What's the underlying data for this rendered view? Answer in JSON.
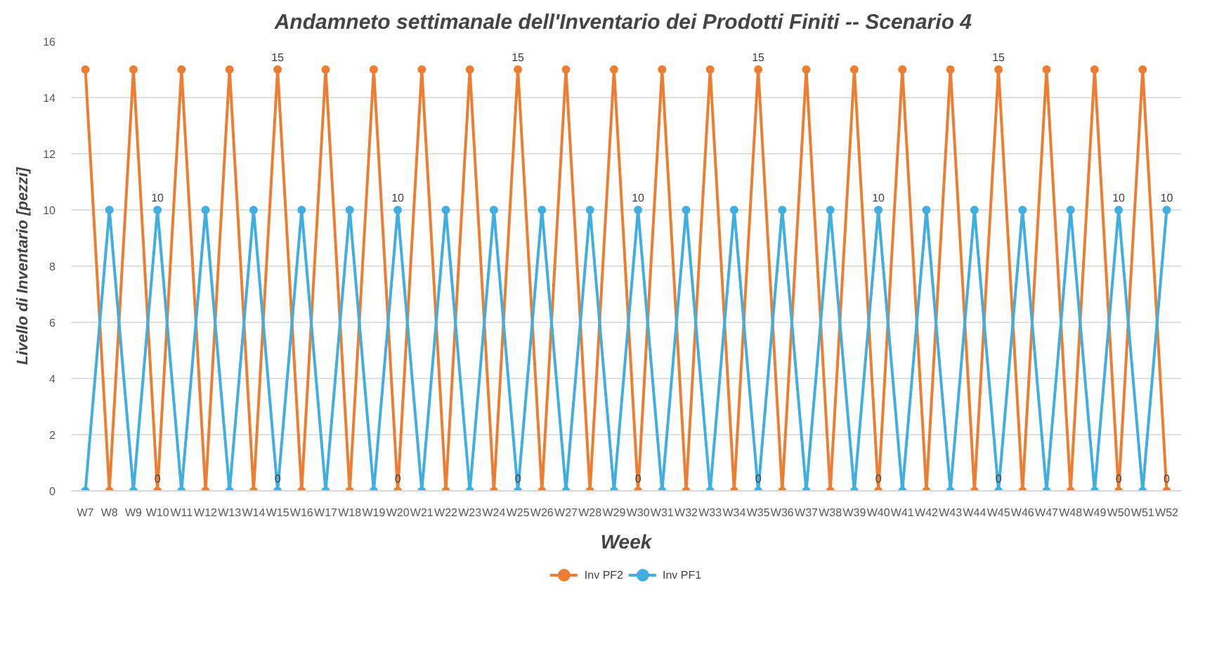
{
  "chart_data": {
    "type": "line",
    "title": "Andamneto settimanale dell'Inventario dei Prodotti Finiti -- Scenario  4",
    "xlabel": "Week",
    "ylabel": "Livello di Inventario [pezzi]",
    "categories": [
      "W7",
      "W8",
      "W9",
      "W10",
      "W11",
      "W12",
      "W13",
      "W14",
      "W15",
      "W16",
      "W17",
      "W18",
      "W19",
      "W20",
      "W21",
      "W22",
      "W23",
      "W24",
      "W25",
      "W26",
      "W27",
      "W28",
      "W29",
      "W30",
      "W31",
      "W32",
      "W33",
      "W34",
      "W35",
      "W36",
      "W37",
      "W38",
      "W39",
      "W40",
      "W41",
      "W42",
      "W43",
      "W44",
      "W45",
      "W46",
      "W47",
      "W48",
      "W49",
      "W50",
      "W51",
      "W52"
    ],
    "series": [
      {
        "name": "Inv PF2",
        "color": "#ed7d31",
        "values": [
          15,
          0,
          15,
          0,
          15,
          0,
          15,
          0,
          15,
          0,
          15,
          0,
          15,
          0,
          15,
          0,
          15,
          0,
          15,
          0,
          15,
          0,
          15,
          0,
          15,
          0,
          15,
          0,
          15,
          0,
          15,
          0,
          15,
          0,
          15,
          0,
          15,
          0,
          15,
          0,
          15,
          0,
          15,
          0,
          15,
          0
        ],
        "value_labels": [
          null,
          null,
          null,
          "0",
          null,
          null,
          null,
          null,
          "15",
          null,
          null,
          null,
          null,
          "0",
          null,
          null,
          null,
          null,
          "15",
          null,
          null,
          null,
          null,
          "0",
          null,
          null,
          null,
          null,
          "15",
          null,
          null,
          null,
          null,
          "0",
          null,
          null,
          null,
          null,
          "15",
          null,
          null,
          null,
          null,
          "0",
          null,
          "0"
        ]
      },
      {
        "name": "Inv PF1",
        "color": "#41aee0",
        "values": [
          0,
          10,
          0,
          10,
          0,
          10,
          0,
          10,
          0,
          10,
          0,
          10,
          0,
          10,
          0,
          10,
          0,
          10,
          0,
          10,
          0,
          10,
          0,
          10,
          0,
          10,
          0,
          10,
          0,
          10,
          0,
          10,
          0,
          10,
          0,
          10,
          0,
          10,
          0,
          10,
          0,
          10,
          0,
          10,
          0,
          10
        ],
        "value_labels": [
          null,
          null,
          null,
          "10",
          null,
          null,
          null,
          null,
          "0",
          null,
          null,
          null,
          null,
          "10",
          null,
          null,
          null,
          null,
          "0",
          null,
          null,
          null,
          null,
          "10",
          null,
          null,
          null,
          null,
          "0",
          null,
          null,
          null,
          null,
          "10",
          null,
          null,
          null,
          null,
          "0",
          null,
          null,
          null,
          null,
          "10",
          null,
          "10"
        ]
      }
    ],
    "ylim": [
      0,
      16
    ],
    "yticks": [
      0,
      2,
      4,
      6,
      8,
      10,
      12,
      14,
      16
    ],
    "grid": "y",
    "legend": "bottom",
    "marker": "circle",
    "line_style": "solid"
  }
}
